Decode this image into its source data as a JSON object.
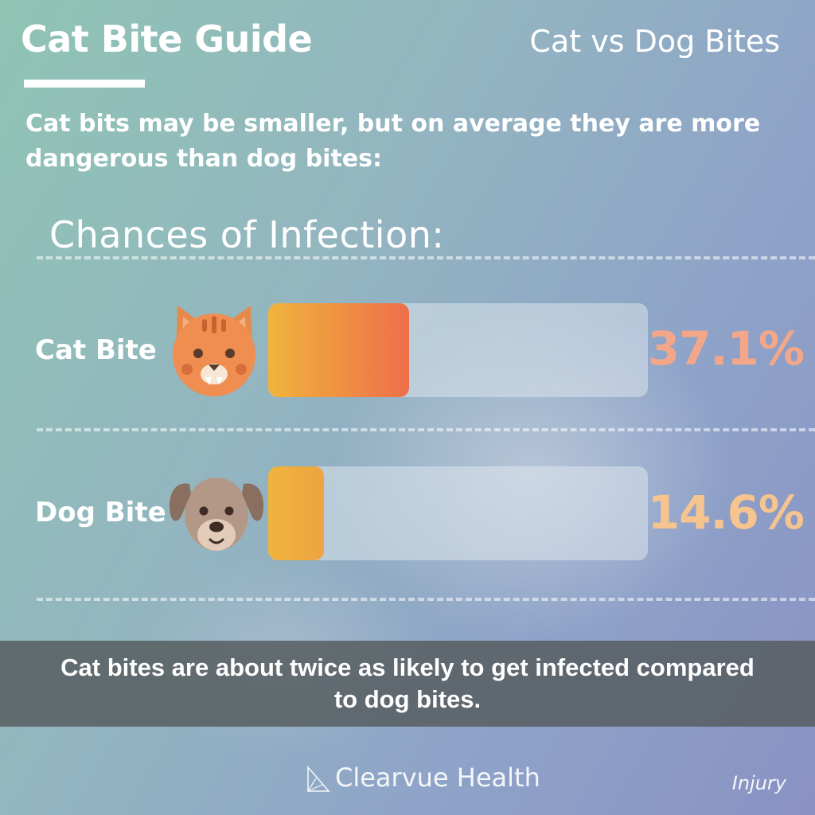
{
  "header": {
    "title": "Cat Bite Guide",
    "topic": "Cat vs Dog Bites",
    "intro": "Cat bits may be smaller, but on average they are more dangerous than dog bites:"
  },
  "chart_data": {
    "type": "bar",
    "orientation": "horizontal",
    "title": "Chances of Infection:",
    "categories": [
      "Cat Bite",
      "Dog Bite"
    ],
    "values": [
      37.1,
      14.6
    ],
    "value_labels": [
      "37.1%",
      "14.6%"
    ],
    "unit": "%",
    "xlim": [
      0,
      100
    ],
    "grid": false,
    "colors": {
      "cat_fill_start": "#f0b43c",
      "cat_fill_end": "#ee6e4a",
      "dog_fill_start": "#f0b43c",
      "dog_fill_end": "#eda341",
      "cat_value": "#f4a788",
      "dog_value": "#f6c48e"
    }
  },
  "icons": {
    "cat": "cat-face-icon",
    "dog": "dog-face-icon",
    "logo": "clearvue-logo-icon"
  },
  "footer": {
    "message": "Cat bites are about twice as likely to get infected compared to dog bites.",
    "brand": "Clearvue Health",
    "category": "Injury"
  }
}
